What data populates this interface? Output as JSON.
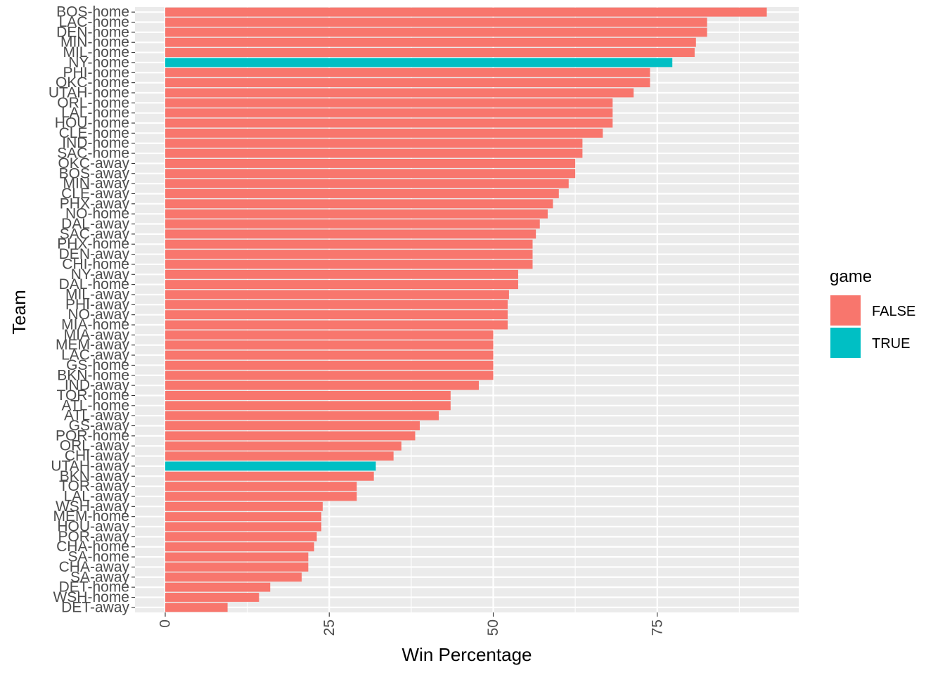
{
  "chart_data": {
    "type": "bar",
    "orientation": "horizontal",
    "xlabel": "Win Percentage",
    "ylabel": "Team",
    "xlim": [
      0,
      96
    ],
    "xticks": [
      0,
      25,
      50,
      75
    ],
    "xtick_labels": [
      "0",
      "25",
      "50",
      "75"
    ],
    "grid": true,
    "legend": {
      "title": "game",
      "position": "right",
      "entries": [
        {
          "label": "FALSE",
          "color": "#F8766D"
        },
        {
          "label": "TRUE",
          "color": "#00BFC4"
        }
      ]
    },
    "categories": [
      "BOS-home",
      "LAC-home",
      "DEN-home",
      "MIN-home",
      "MIL-home",
      "NY-home",
      "PHI-home",
      "OKC-home",
      "UTAH-home",
      "ORL-home",
      "LAL-home",
      "HOU-home",
      "CLE-home",
      "IND-home",
      "SAC-home",
      "OKC-away",
      "BOS-away",
      "MIN-away",
      "CLE-away",
      "PHX-away",
      "NO-home",
      "DAL-away",
      "SAC-away",
      "PHX-home",
      "DEN-away",
      "CHI-home",
      "NY-away",
      "DAL-home",
      "MIL-away",
      "PHI-away",
      "NO-away",
      "MIA-home",
      "MIA-away",
      "MEM-away",
      "LAC-away",
      "GS-home",
      "BKN-home",
      "IND-away",
      "TOR-home",
      "ATL-home",
      "ATL-away",
      "GS-away",
      "POR-home",
      "ORL-away",
      "CHI-away",
      "UTAH-away",
      "BKN-away",
      "TOR-away",
      "LAL-away",
      "WSH-away",
      "MEM-home",
      "HOU-away",
      "POR-away",
      "CHA-home",
      "SA-home",
      "CHA-away",
      "SA-away",
      "DET-home",
      "WSH-home",
      "DET-away"
    ],
    "values": [
      91.7,
      82.6,
      82.6,
      80.9,
      80.7,
      77.3,
      73.9,
      73.9,
      71.4,
      68.2,
      68.2,
      68.2,
      66.7,
      63.6,
      63.6,
      62.5,
      62.5,
      61.5,
      60.0,
      59.1,
      58.3,
      57.1,
      56.5,
      56.0,
      56.0,
      56.0,
      53.8,
      53.8,
      52.4,
      52.2,
      52.2,
      52.2,
      50.0,
      50.0,
      50.0,
      50.0,
      50.0,
      47.8,
      43.5,
      43.5,
      41.7,
      38.8,
      38.1,
      36.0,
      34.8,
      32.1,
      31.8,
      29.2,
      29.2,
      24.0,
      23.8,
      23.8,
      23.1,
      22.7,
      21.8,
      21.8,
      20.8,
      16.0,
      14.3,
      9.5
    ],
    "game": [
      false,
      false,
      false,
      false,
      false,
      true,
      false,
      false,
      false,
      false,
      false,
      false,
      false,
      false,
      false,
      false,
      false,
      false,
      false,
      false,
      false,
      false,
      false,
      false,
      false,
      false,
      false,
      false,
      false,
      false,
      false,
      false,
      false,
      false,
      false,
      false,
      false,
      false,
      false,
      false,
      false,
      false,
      false,
      false,
      false,
      true,
      false,
      false,
      false,
      false,
      false,
      false,
      false,
      false,
      false,
      false,
      false,
      false,
      false,
      false
    ],
    "colors": {
      "false": "#F8766D",
      "true": "#00BFC4",
      "panel": "#EBEBEB",
      "grid": "#FFFFFF"
    }
  }
}
